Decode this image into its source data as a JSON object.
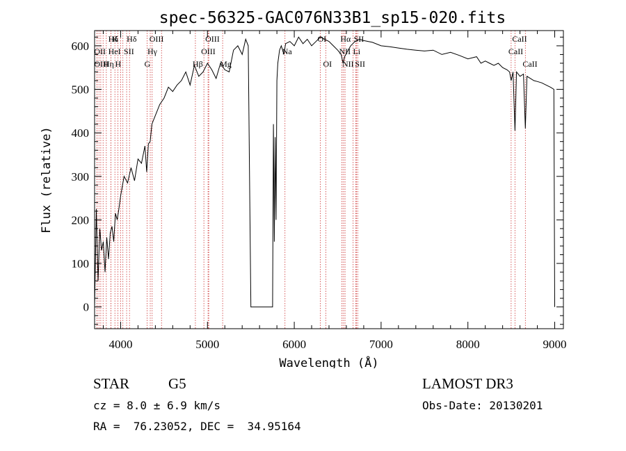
{
  "chart_data": {
    "type": "line",
    "title": "spec-56325-GAC076N33B1_sp15-020.fits",
    "xlabel": "Wavelength (Å)",
    "ylabel": "Flux (relative)",
    "xlim": [
      3700,
      9100
    ],
    "ylim": [
      -50,
      635
    ],
    "xticks": [
      4000,
      5000,
      6000,
      7000,
      8000,
      9000
    ],
    "yticks": [
      0,
      100,
      200,
      300,
      400,
      500,
      600
    ],
    "grid": false,
    "legend": "none",
    "line_color": "#000000",
    "marker_color": "#cc3333",
    "series": [
      {
        "x": [
          3700,
          3720,
          3740,
          3760,
          3780,
          3800,
          3820,
          3840,
          3860,
          3880,
          3900,
          3920,
          3940,
          3960,
          3980,
          4000,
          4040,
          4080,
          4120,
          4160,
          4200,
          4240,
          4280,
          4300,
          4320,
          4340,
          4360,
          4400,
          4450,
          4500,
          4550,
          4600,
          4650,
          4700,
          4750,
          4800,
          4850,
          4900,
          4950,
          5000,
          5050,
          5100,
          5150,
          5200,
          5250,
          5300,
          5350,
          5400,
          5440,
          5470,
          5490,
          5500,
          5550,
          5600,
          5650,
          5700,
          5750,
          5760,
          5770,
          5780,
          5790,
          5800,
          5810,
          5830,
          5850,
          5880,
          5900,
          5950,
          6000,
          6050,
          6100,
          6150,
          6200,
          6250,
          6300,
          6350,
          6400,
          6450,
          6500,
          6540,
          6562,
          6580,
          6620,
          6650,
          6700,
          6750,
          6800,
          6900,
          7000,
          7100,
          7200,
          7300,
          7400,
          7500,
          7600,
          7700,
          7800,
          7900,
          8000,
          8100,
          8150,
          8200,
          8250,
          8300,
          8350,
          8400,
          8450,
          8480,
          8498,
          8520,
          8542,
          8560,
          8600,
          8640,
          8662,
          8680,
          8720,
          8760,
          8800,
          8850,
          8900,
          8950,
          8990,
          9000
        ],
        "y": [
          0,
          225,
          60,
          180,
          130,
          150,
          80,
          160,
          110,
          170,
          185,
          150,
          215,
          200,
          225,
          255,
          300,
          285,
          320,
          290,
          340,
          330,
          370,
          310,
          375,
          380,
          420,
          440,
          465,
          480,
          505,
          495,
          510,
          520,
          540,
          510,
          555,
          530,
          540,
          560,
          545,
          525,
          560,
          545,
          540,
          590,
          600,
          580,
          615,
          600,
          200,
          0,
          0,
          0,
          0,
          0,
          0,
          420,
          150,
          390,
          200,
          520,
          560,
          590,
          600,
          580,
          605,
          610,
          600,
          620,
          605,
          615,
          600,
          610,
          620,
          615,
          610,
          600,
          590,
          580,
          560,
          575,
          590,
          600,
          610,
          615,
          612,
          608,
          600,
          598,
          595,
          592,
          590,
          588,
          590,
          580,
          585,
          578,
          570,
          575,
          560,
          565,
          560,
          555,
          560,
          550,
          545,
          540,
          520,
          540,
          405,
          540,
          530,
          535,
          410,
          530,
          525,
          520,
          518,
          515,
          510,
          505,
          500,
          0
        ]
      }
    ],
    "line_markers": [
      {
        "label": "Hδ",
        "x": 3889,
        "row": 1
      },
      {
        "label": "OII",
        "x": 3727,
        "row": 2
      },
      {
        "label": "OIII",
        "x": 3727,
        "row": 3
      },
      {
        "label": "K",
        "x": 3934,
        "row": 1
      },
      {
        "label": "HeI",
        "x": 3889,
        "row": 2
      },
      {
        "label": "Hη",
        "x": 3835,
        "row": 3
      },
      {
        "label": "Hδ",
        "x": 4102,
        "row": 1
      },
      {
        "label": "SII",
        "x": 4069,
        "row": 2
      },
      {
        "label": "H",
        "x": 3968,
        "row": 3
      },
      {
        "label": "OIII",
        "x": 4363,
        "row": 1
      },
      {
        "label": "Hγ",
        "x": 4341,
        "row": 2
      },
      {
        "label": "G",
        "x": 4305,
        "row": 3
      },
      {
        "label": "Hβ",
        "x": 4861,
        "row": 3
      },
      {
        "label": "OIII",
        "x": 4959,
        "row": 2
      },
      {
        "label": "OIII",
        "x": 5007,
        "row": 1
      },
      {
        "label": "Mg",
        "x": 5175,
        "row": 3
      },
      {
        "label": "Na",
        "x": 5893,
        "row": 2
      },
      {
        "label": "OI",
        "x": 6300,
        "row": 1
      },
      {
        "label": "OI",
        "x": 6364,
        "row": 3
      },
      {
        "label": "Hα",
        "x": 6563,
        "row": 1
      },
      {
        "label": "NII",
        "x": 6548,
        "row": 2
      },
      {
        "label": "NII",
        "x": 6584,
        "row": 3
      },
      {
        "label": "SII",
        "x": 6717,
        "row": 1
      },
      {
        "label": "Li",
        "x": 6708,
        "row": 2
      },
      {
        "label": "SII",
        "x": 6731,
        "row": 3
      },
      {
        "label": "CaII",
        "x": 8542,
        "row": 1
      },
      {
        "label": "CaII",
        "x": 8498,
        "row": 2
      },
      {
        "label": "CaII",
        "x": 8662,
        "row": 3
      }
    ],
    "extra_marker_lines": [
      3798,
      3750,
      3771,
      4000,
      4026,
      4471,
      5015,
      6678,
      6583
    ]
  },
  "info": {
    "object": "STAR",
    "subclass": "G5",
    "survey": "LAMOST DR3",
    "cz": "cz = 8.0 ± 6.9 km/s",
    "obs_date": "Obs-Date: 20130201",
    "coords": "RA =  76.23052, DEC =  34.95164"
  }
}
